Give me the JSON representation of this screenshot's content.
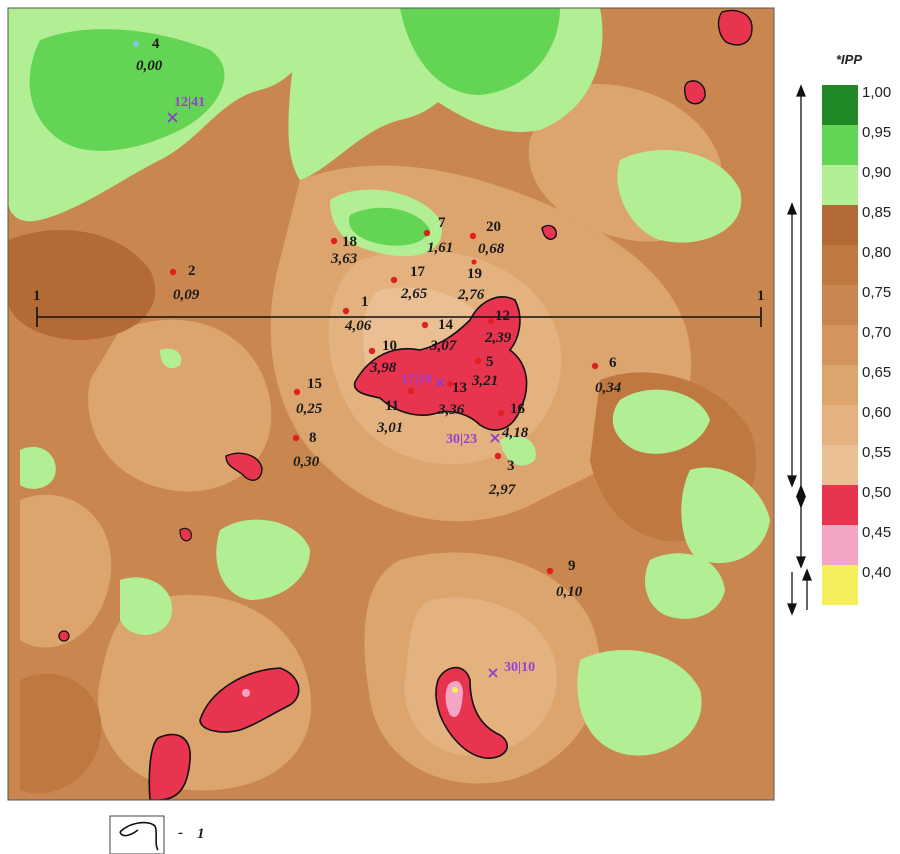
{
  "legend": {
    "title": "*IPP",
    "items": [
      {
        "label": "1,00",
        "color": "#1f8a25"
      },
      {
        "label": "0,95",
        "color": "#63d453"
      },
      {
        "label": "0,90",
        "color": "#b2ef94"
      },
      {
        "label": "0,85",
        "color": "#b46a34"
      },
      {
        "label": "0,80",
        "color": "#bf7840"
      },
      {
        "label": "0,75",
        "color": "#c9874f"
      },
      {
        "label": "0,70",
        "color": "#d4955d"
      },
      {
        "label": "0,65",
        "color": "#dca56e"
      },
      {
        "label": "0,60",
        "color": "#e3b27f"
      },
      {
        "label": "0,55",
        "color": "#ebbf94"
      },
      {
        "label": "0,50",
        "color": "#e8344f"
      },
      {
        "label": "0,45",
        "color": "#f3a6c3"
      },
      {
        "label": "0,40",
        "color": "#f4ef5c"
      }
    ]
  },
  "profile_line": {
    "start_label": "1",
    "end_label": "1"
  },
  "wells": [
    {
      "id": "1",
      "value": "4,06"
    },
    {
      "id": "2",
      "value": "0,09"
    },
    {
      "id": "3",
      "value": "2,97"
    },
    {
      "id": "4",
      "value": "0,00"
    },
    {
      "id": "5",
      "value": "3,21"
    },
    {
      "id": "6",
      "value": "0,34"
    },
    {
      "id": "7",
      "value": "1,61"
    },
    {
      "id": "8",
      "value": "0,30"
    },
    {
      "id": "9",
      "value": "0,10"
    },
    {
      "id": "10",
      "value": "3,98"
    },
    {
      "id": "11",
      "value": "3,01"
    },
    {
      "id": "12",
      "value": "2,39"
    },
    {
      "id": "13",
      "value": "3,36"
    },
    {
      "id": "14",
      "value": "3,07"
    },
    {
      "id": "15",
      "value": "0,25"
    },
    {
      "id": "16",
      "value": "4,18"
    },
    {
      "id": "17",
      "value": "2,65"
    },
    {
      "id": "18",
      "value": "3,63"
    },
    {
      "id": "19",
      "value": "2,76"
    },
    {
      "id": "20",
      "value": "0,68"
    }
  ],
  "points": [
    {
      "label": "12|41"
    },
    {
      "label": "30|23"
    },
    {
      "label": "30|10"
    },
    {
      "label": "17|19"
    }
  ],
  "footnote": {
    "label": "1"
  }
}
